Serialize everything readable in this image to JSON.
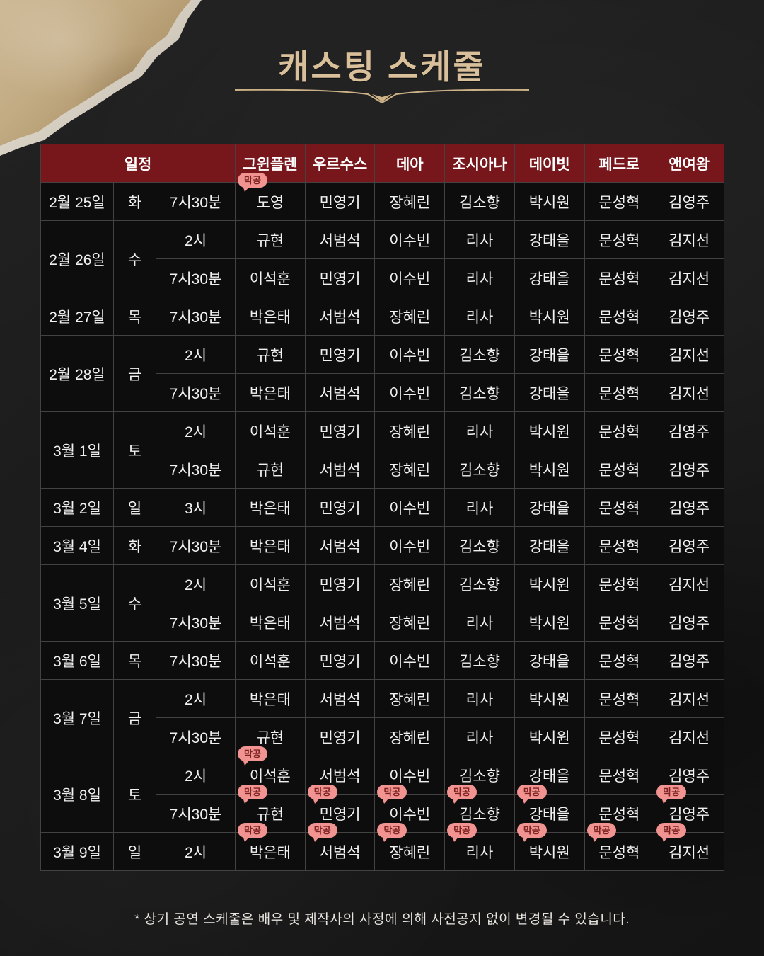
{
  "title": "캐스팅 스케줄",
  "footer_note": "* 상기 공연 스케줄은 배우 및 제작사의 사정에 의해 사전공지 없이 변경될 수 있습니다.",
  "badge_label": "막공",
  "colors": {
    "header_bg": "#77161b",
    "accent_red": "#e25551",
    "badge_bg": "#f19390",
    "badge_text": "#7c2220",
    "title_gold": "#d9c09b",
    "cell_bg": "#0d0d0d",
    "grid_line": "#424242"
  },
  "table": {
    "schedule_header": "일정",
    "cast_headers": [
      "그윈플렌",
      "우르수스",
      "데아",
      "조시아나",
      "데이빗",
      "페드로",
      "앤여왕"
    ],
    "day_groups": [
      {
        "date": "2월 25일",
        "day": "화",
        "red": false,
        "shows": [
          {
            "time": "7시30분",
            "cast": [
              "도영",
              "민영기",
              "장혜린",
              "김소향",
              "박시원",
              "문성혁",
              "김영주"
            ],
            "badges": [
              0
            ]
          }
        ]
      },
      {
        "date": "2월 26일",
        "day": "수",
        "red": false,
        "shows": [
          {
            "time": "2시",
            "cast": [
              "규현",
              "서범석",
              "이수빈",
              "리사",
              "강태을",
              "문성혁",
              "김지선"
            ],
            "badges": []
          },
          {
            "time": "7시30분",
            "cast": [
              "이석훈",
              "민영기",
              "이수빈",
              "리사",
              "강태을",
              "문성혁",
              "김지선"
            ],
            "badges": []
          }
        ]
      },
      {
        "date": "2월 27일",
        "day": "목",
        "red": false,
        "shows": [
          {
            "time": "7시30분",
            "cast": [
              "박은태",
              "서범석",
              "장혜린",
              "리사",
              "박시원",
              "문성혁",
              "김영주"
            ],
            "badges": []
          }
        ]
      },
      {
        "date": "2월 28일",
        "day": "금",
        "red": false,
        "shows": [
          {
            "time": "2시",
            "cast": [
              "규현",
              "민영기",
              "이수빈",
              "김소향",
              "강태을",
              "문성혁",
              "김지선"
            ],
            "badges": []
          },
          {
            "time": "7시30분",
            "cast": [
              "박은태",
              "서범석",
              "이수빈",
              "김소향",
              "강태을",
              "문성혁",
              "김지선"
            ],
            "badges": []
          }
        ]
      },
      {
        "date": "3월 1일",
        "day": "토",
        "red": true,
        "shows": [
          {
            "time": "2시",
            "cast": [
              "이석훈",
              "민영기",
              "장혜린",
              "리사",
              "박시원",
              "문성혁",
              "김영주"
            ],
            "badges": []
          },
          {
            "time": "7시30분",
            "cast": [
              "규현",
              "서범석",
              "장혜린",
              "김소향",
              "박시원",
              "문성혁",
              "김영주"
            ],
            "badges": []
          }
        ]
      },
      {
        "date": "3월 2일",
        "day": "일",
        "red": true,
        "shows": [
          {
            "time": "3시",
            "cast": [
              "박은태",
              "민영기",
              "이수빈",
              "리사",
              "강태을",
              "문성혁",
              "김영주"
            ],
            "badges": []
          }
        ]
      },
      {
        "date": "3월 4일",
        "day": "화",
        "red": false,
        "shows": [
          {
            "time": "7시30분",
            "cast": [
              "박은태",
              "서범석",
              "이수빈",
              "김소향",
              "강태을",
              "문성혁",
              "김영주"
            ],
            "badges": []
          }
        ]
      },
      {
        "date": "3월 5일",
        "day": "수",
        "red": false,
        "shows": [
          {
            "time": "2시",
            "cast": [
              "이석훈",
              "민영기",
              "장혜린",
              "김소향",
              "박시원",
              "문성혁",
              "김지선"
            ],
            "badges": []
          },
          {
            "time": "7시30분",
            "cast": [
              "박은태",
              "서범석",
              "장혜린",
              "리사",
              "박시원",
              "문성혁",
              "김영주"
            ],
            "badges": []
          }
        ]
      },
      {
        "date": "3월 6일",
        "day": "목",
        "red": false,
        "shows": [
          {
            "time": "7시30분",
            "cast": [
              "이석훈",
              "민영기",
              "이수빈",
              "김소향",
              "강태을",
              "문성혁",
              "김영주"
            ],
            "badges": []
          }
        ]
      },
      {
        "date": "3월 7일",
        "day": "금",
        "red": false,
        "shows": [
          {
            "time": "2시",
            "cast": [
              "박은태",
              "서범석",
              "장혜린",
              "리사",
              "박시원",
              "문성혁",
              "김지선"
            ],
            "badges": []
          },
          {
            "time": "7시30분",
            "cast": [
              "규현",
              "민영기",
              "장혜린",
              "리사",
              "박시원",
              "문성혁",
              "김지선"
            ],
            "badges": []
          }
        ]
      },
      {
        "date": "3월 8일",
        "day": "토",
        "red": false,
        "shows": [
          {
            "time": "2시",
            "cast": [
              "이석훈",
              "서범석",
              "이수빈",
              "김소향",
              "강태을",
              "문성혁",
              "김영주"
            ],
            "badges": [
              0
            ]
          },
          {
            "time": "7시30분",
            "cast": [
              "규현",
              "민영기",
              "이수빈",
              "김소향",
              "강태을",
              "문성혁",
              "김영주"
            ],
            "badges": [
              0,
              1,
              2,
              3,
              4,
              6
            ]
          }
        ]
      },
      {
        "date": "3월 9일",
        "day": "일",
        "red": true,
        "shows": [
          {
            "time": "2시",
            "cast": [
              "박은태",
              "서범석",
              "장혜린",
              "리사",
              "박시원",
              "문성혁",
              "김지선"
            ],
            "badges": [
              0,
              1,
              2,
              3,
              4,
              5,
              6
            ]
          }
        ]
      }
    ]
  }
}
